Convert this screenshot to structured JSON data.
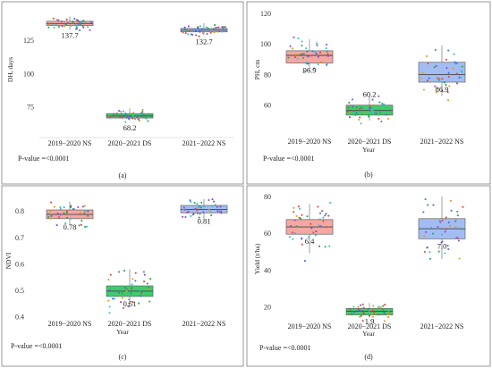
{
  "colors": {
    "ns1": "#f4a7a3",
    "ds": "#3ecb6e",
    "ns2": "#a3bdf3",
    "frame": "#7f7f7f",
    "points": [
      "#e0483c",
      "#2aa84f",
      "#3f6fe0",
      "#d2a020",
      "#8a4fcf",
      "#3cbfc9"
    ]
  },
  "chart_data": [
    {
      "type": "box",
      "panel_label": "(a)",
      "ylabel": "DH, days",
      "xlabel": "",
      "categories": [
        "2019−2020 NS",
        "2020−2021 DS",
        "2021−2022 NS"
      ],
      "ylim": [
        52,
        150
      ],
      "yticks": [
        75,
        100,
        125
      ],
      "boxes": [
        {
          "q1": 136.2,
          "median": 137.7,
          "q3": 139.4,
          "whisker_low": 133,
          "whisker_high": 143
        },
        {
          "q1": 66.7,
          "median": 68.2,
          "q3": 70.0,
          "whisker_low": 65,
          "whisker_high": 74
        },
        {
          "q1": 131.4,
          "median": 132.7,
          "q3": 134.0,
          "whisker_low": 129,
          "whisker_high": 138
        }
      ],
      "point_spread": [
        2.5,
        2.2,
        2.0
      ],
      "point_range": [
        [
          132,
          146
        ],
        [
          63,
          77
        ],
        [
          128,
          140
        ]
      ],
      "annotations": [
        "137.7",
        "68.2",
        "132.7"
      ],
      "pvalue": "P-value =<0.0001"
    },
    {
      "type": "box",
      "panel_label": "(b)",
      "ylabel": "PH, cm",
      "xlabel": "Year",
      "categories": [
        "2019−2020 NS",
        "2020−2021 DS",
        "2021−2022 NS"
      ],
      "ylim": [
        33,
        124
      ],
      "yticks": [
        60,
        80,
        100,
        120
      ],
      "boxes": [
        {
          "q1": 87.5,
          "median": 92.5,
          "q3": 95.5,
          "whisker_low": 82,
          "whisker_high": 103
        },
        {
          "q1": 53.5,
          "median": 56.5,
          "q3": 60.0,
          "whisker_low": 50,
          "whisker_high": 66
        },
        {
          "q1": 75.0,
          "median": 80.0,
          "q3": 88.0,
          "whisker_low": 66,
          "whisker_high": 99
        }
      ],
      "point_spread": [
        6,
        3.5,
        8
      ],
      "point_range": [
        [
          80,
          120
        ],
        [
          48,
          72
        ],
        [
          62,
          116
        ]
      ],
      "annotations": [
        "96.9",
        "60.2",
        "86.9"
      ],
      "pvalue": "P-value =<0.0001"
    },
    {
      "type": "box",
      "panel_label": "(c)",
      "ylabel": "NDVI",
      "xlabel": "Year",
      "categories": [
        "2019−2020 NS",
        "2020−2021 DS",
        "2021−2022 NS"
      ],
      "ylim": [
        0.355,
        0.875
      ],
      "yticks": [
        0.4,
        0.5,
        0.6,
        0.7,
        0.8
      ],
      "boxes": [
        {
          "q1": 0.771,
          "median": 0.787,
          "q3": 0.804,
          "whisker_low": 0.745,
          "whisker_high": 0.835
        },
        {
          "q1": 0.477,
          "median": 0.497,
          "q3": 0.517,
          "whisker_low": 0.435,
          "whisker_high": 0.58
        },
        {
          "q1": 0.793,
          "median": 0.806,
          "q3": 0.821,
          "whisker_low": 0.77,
          "whisker_high": 0.845
        }
      ],
      "point_spread": [
        0.022,
        0.035,
        0.02
      ],
      "point_range": [
        [
          0.72,
          0.85
        ],
        [
          0.41,
          0.59
        ],
        [
          0.76,
          0.85
        ]
      ],
      "annotations": [
        "0.78",
        "0.51",
        "0.81"
      ],
      "pvalue": "P-value =<0.0001"
    },
    {
      "type": "box",
      "panel_label": "(d)",
      "ylabel": "Yield (t/ha)",
      "xlabel": "Year",
      "categories": [
        "2019−2020 NS",
        "2020−2021 DS",
        "2021−2022 NS"
      ],
      "ylim": [
        7,
        83
      ],
      "yticks": [
        20,
        40,
        60,
        80
      ],
      "boxes": [
        {
          "q1": 59.5,
          "median": 63.5,
          "q3": 67.5,
          "whisker_low": 49,
          "whisker_high": 76
        },
        {
          "q1": 15.5,
          "median": 17.5,
          "q3": 19.0,
          "whisker_low": 14,
          "whisker_high": 22
        },
        {
          "q1": 57.0,
          "median": 62.5,
          "q3": 68.0,
          "whisker_low": 46,
          "whisker_high": 80
        }
      ],
      "point_spread": [
        7,
        2.5,
        9
      ],
      "point_range": [
        [
          44,
          78
        ],
        [
          12,
          25
        ],
        [
          32,
          80
        ]
      ],
      "annotations": [
        "6.4",
        "1.9",
        "7.0"
      ],
      "pvalue": "P-value =<0.0001"
    }
  ]
}
